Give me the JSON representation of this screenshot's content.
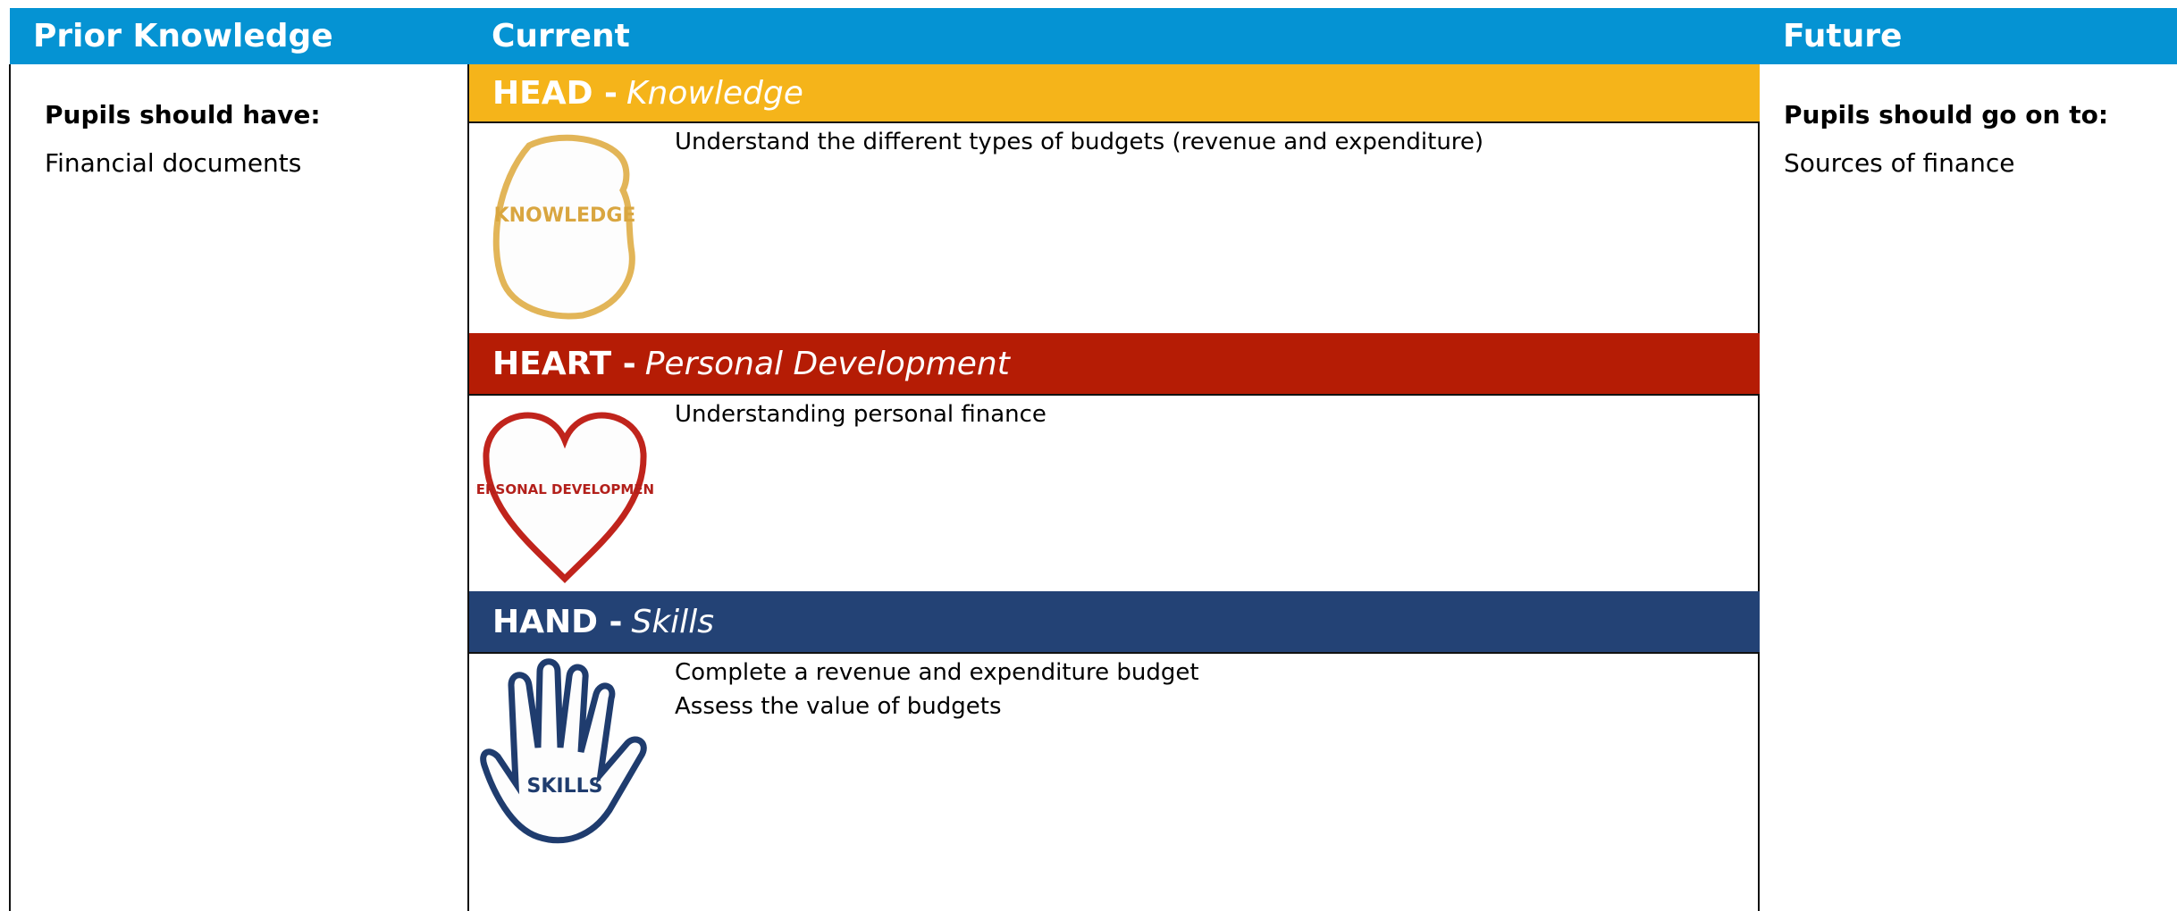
{
  "columns": {
    "prior": {
      "header": "Prior Knowledge",
      "subheading": "Pupils should have:",
      "items": [
        "Financial documents"
      ]
    },
    "current": {
      "header": "Current",
      "sections": [
        {
          "bold": "HEAD -",
          "italic": "Knowledge",
          "icon_label": "KNOWLEDGE",
          "items": [
            "Understand the different types of budgets (revenue and expenditure)"
          ]
        },
        {
          "bold": "HEART -",
          "italic": "Personal Development",
          "icon_label": "PERSONAL DEVELOPMENT",
          "items": [
            "Understanding personal finance"
          ]
        },
        {
          "bold": "HAND -",
          "italic": "Skills",
          "icon_label": "SKILLS",
          "items": [
            "Complete a revenue and expenditure budget",
            "Assess the value of budgets"
          ]
        }
      ]
    },
    "future": {
      "header": "Future",
      "subheading": "Pupils should go on to:",
      "items": [
        "Sources of finance"
      ]
    }
  }
}
